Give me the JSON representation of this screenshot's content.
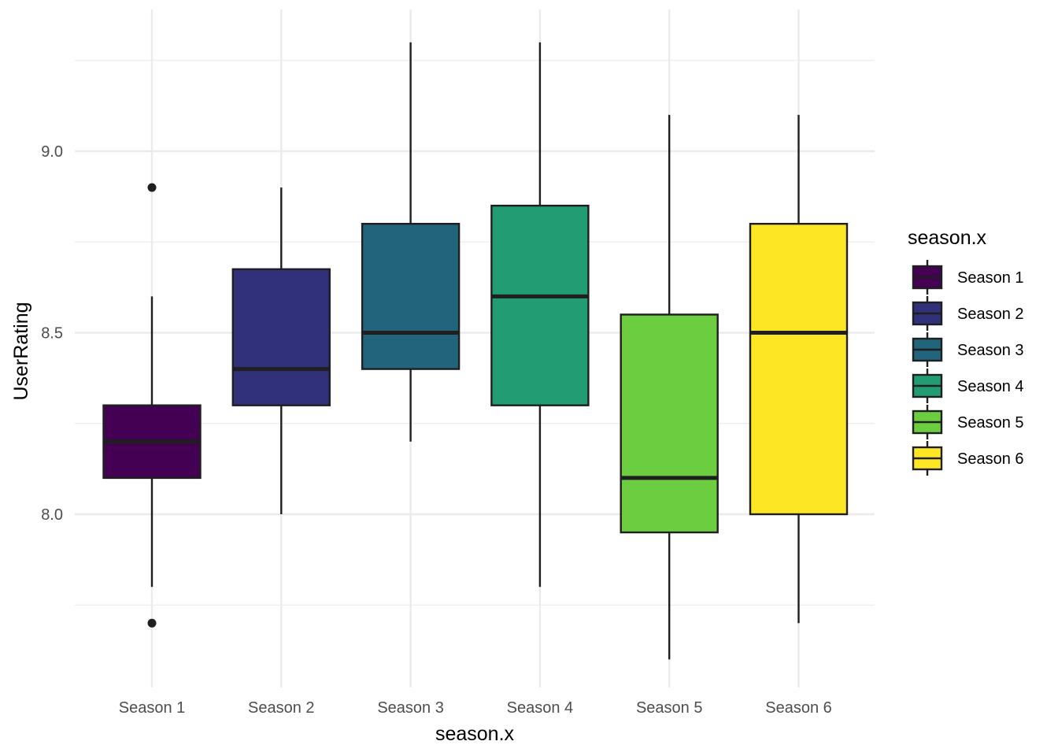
{
  "chart_data": {
    "type": "boxplot",
    "xlabel": "season.x",
    "ylabel": "UserRating",
    "ylim": [
      7.55,
      9.35
    ],
    "y_ticks": [
      "8.0",
      "8.5",
      "9.0"
    ],
    "y_tick_values": [
      8.0,
      8.5,
      9.0
    ],
    "y_minor_gridlines": [
      7.75,
      8.25,
      8.75,
      9.25
    ],
    "grid": true,
    "legend": {
      "title": "season.x",
      "position": "right"
    },
    "categories": [
      "Season 1",
      "Season 2",
      "Season 3",
      "Season 4",
      "Season 5",
      "Season 6"
    ],
    "series": [
      {
        "name": "Season 1",
        "color": "#440154",
        "min": 7.8,
        "q1": 8.1,
        "median": 8.2,
        "q3": 8.3,
        "max": 8.6,
        "outliers": [
          8.9,
          7.7
        ]
      },
      {
        "name": "Season 2",
        "color": "#31307A",
        "min": 8.0,
        "q1": 8.3,
        "median": 8.4,
        "q3": 8.675,
        "max": 8.9,
        "outliers": []
      },
      {
        "name": "Season 3",
        "color": "#22647C",
        "min": 8.2,
        "q1": 8.4,
        "median": 8.5,
        "q3": 8.8,
        "max": 9.3,
        "outliers": []
      },
      {
        "name": "Season 4",
        "color": "#229C73",
        "min": 7.8,
        "q1": 8.3,
        "median": 8.6,
        "q3": 8.85,
        "max": 9.3,
        "outliers": []
      },
      {
        "name": "Season 5",
        "color": "#6BCD3F",
        "min": 7.6,
        "q1": 7.95,
        "median": 8.1,
        "q3": 8.55,
        "max": 9.1,
        "outliers": []
      },
      {
        "name": "Season 6",
        "color": "#FDE725",
        "min": 7.7,
        "q1": 8.0,
        "median": 8.5,
        "q3": 8.8,
        "max": 9.1,
        "outliers": []
      }
    ]
  }
}
